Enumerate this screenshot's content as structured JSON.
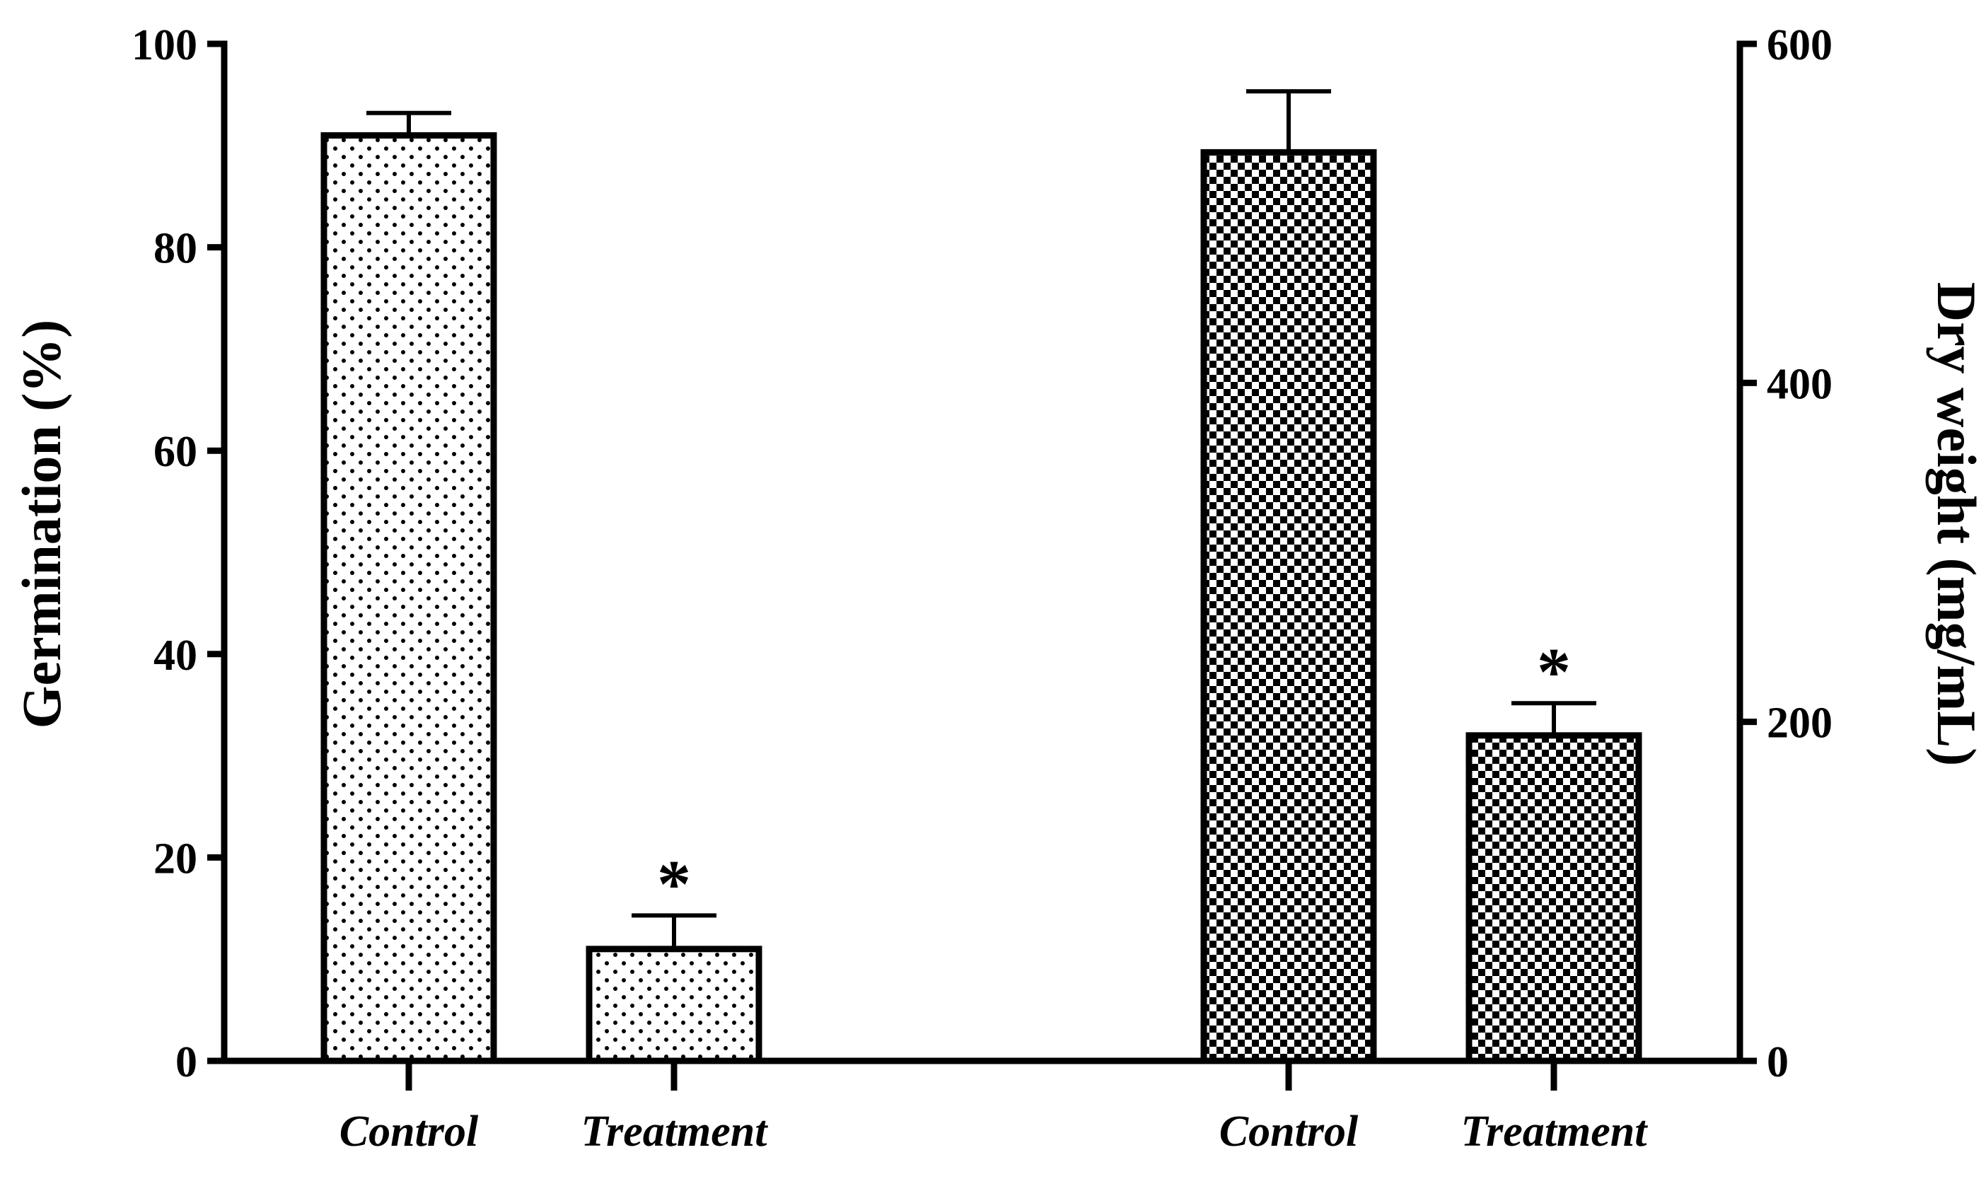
{
  "chart_data": {
    "type": "bar",
    "panels": [
      {
        "axis": "left",
        "ylabel": "Germination (%)",
        "ylim": [
          0,
          100
        ],
        "yticks": [
          0,
          20,
          40,
          60,
          80,
          100
        ],
        "pattern": "dots",
        "categories": [
          "Control",
          "Treatment"
        ],
        "values": [
          91,
          11
        ],
        "errors": [
          2.2,
          3.3
        ],
        "annotations": [
          "",
          "*"
        ]
      },
      {
        "axis": "right",
        "ylabel": "Dry weight (mg/mL)",
        "ylim": [
          0,
          600
        ],
        "yticks": [
          0,
          200,
          400,
          600
        ],
        "pattern": "checkerboard",
        "categories": [
          "Control",
          "Treatment"
        ],
        "values": [
          536,
          192
        ],
        "errors": [
          36,
          19
        ],
        "annotations": [
          "",
          "*"
        ]
      }
    ],
    "grid": false
  }
}
